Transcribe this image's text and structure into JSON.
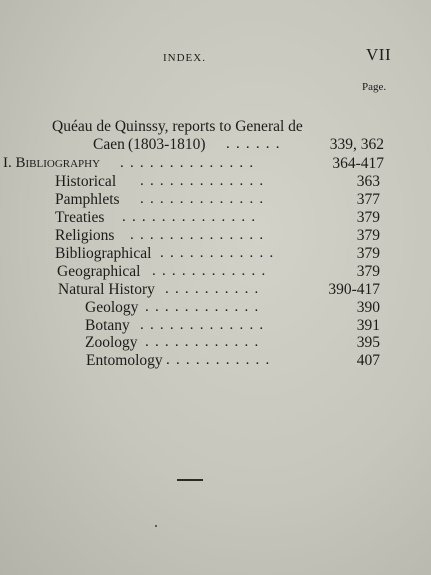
{
  "header": {
    "index_label": "INDEX.",
    "folio": "VII",
    "page_column": "Page."
  },
  "entries": [
    {
      "text_line1": "Quéau de Quinssy, reports to General de",
      "text_line2_a": "Caen",
      "text_line2_b": "(1803-1810)",
      "pages": "339, 362"
    },
    {
      "text": "I. Bibliography",
      "pages": "364-417"
    },
    {
      "text": "Historical",
      "pages": "363"
    },
    {
      "text": "Pamphlets",
      "pages": "377"
    },
    {
      "text": "Treaties",
      "pages": "379"
    },
    {
      "text": "Religions",
      "pages": "379"
    },
    {
      "text": "Bibliographical",
      "pages": "379"
    },
    {
      "text": "Geographical",
      "pages": "379"
    },
    {
      "text": "Natural History",
      "pages": "390-417"
    },
    {
      "text": "Geology",
      "pages": "390"
    },
    {
      "text": "Botany",
      "pages": "391"
    },
    {
      "text": "Zoology",
      "pages": "395"
    },
    {
      "text": "Entomology",
      "pages": "407"
    }
  ]
}
